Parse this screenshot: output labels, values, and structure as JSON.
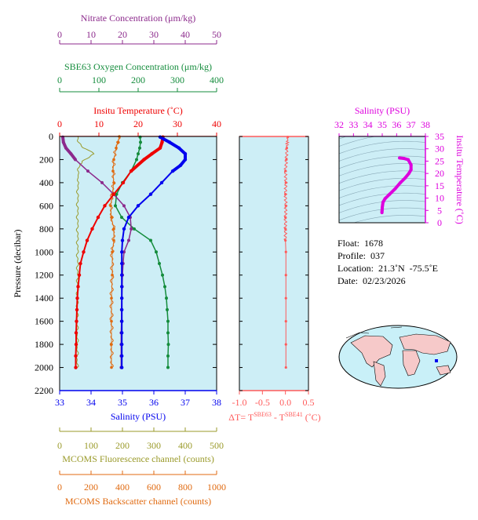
{
  "colors": {
    "nitrate": "#8c2a8c",
    "oxygen": "#148c3c",
    "temperature": "#ee0000",
    "salinity": "#0000ee",
    "fluorescence": "#9a9a2a",
    "backscatter": "#e06a10",
    "delta": "#ff5a5a",
    "ts": "#dd00dd",
    "plot_bg": "#cdeef6"
  },
  "axes_text": {
    "nitrate_title": "Nitrate Concentration (μm/kg)",
    "oxygen_title": "SBE63 Oxygen Concentration (μm/kg)",
    "temperature_title": "Insitu Temperature (˚C)",
    "salinity_title": "Salinity (PSU)",
    "pressure_title": "Pressure (decibar)",
    "fluorescence_title": "MCOMS Fluorescence channel (counts)",
    "backscatter_title": "MCOMS Backscatter channel (counts)",
    "delta_title": "ΔT= T",
    "delta_sup1": "SBE63",
    "delta_mid": " - T",
    "delta_sup2": "SBE41",
    "delta_end": " (˚C)",
    "ts_top_title": "Salinity (PSU)",
    "ts_side_title": "Insitu Temperature (˚C)"
  },
  "info": {
    "float": "Float:  1678",
    "profile": "Profile:  037",
    "location": "Location:  21.3˚N  -75.5˚E",
    "date": "Date:  02/23/2026"
  },
  "chart_data": [
    {
      "type": "line",
      "name": "profile_panel",
      "y_axis": {
        "label": "Pressure (decibar)",
        "range": [
          0,
          2200
        ],
        "ticks": [
          0,
          200,
          400,
          600,
          800,
          1000,
          1200,
          1400,
          1600,
          1800,
          2000,
          2200
        ],
        "inverted": true
      },
      "x_axes": [
        {
          "key": "nitrate",
          "label": "Nitrate Concentration (μm/kg)",
          "range": [
            0,
            50
          ],
          "ticks": [
            0,
            10,
            20,
            30,
            40,
            50
          ]
        },
        {
          "key": "oxygen",
          "label": "SBE63 Oxygen Concentration (μm/kg)",
          "range": [
            0,
            400
          ],
          "ticks": [
            0,
            100,
            200,
            300,
            400
          ]
        },
        {
          "key": "temperature",
          "label": "Insitu Temperature (˚C)",
          "range": [
            0,
            40
          ],
          "ticks": [
            0,
            10,
            20,
            30,
            40
          ]
        },
        {
          "key": "salinity",
          "label": "Salinity (PSU)",
          "range": [
            33,
            38
          ],
          "ticks": [
            33,
            34,
            35,
            36,
            37,
            38
          ]
        },
        {
          "key": "fluorescence",
          "label": "MCOMS Fluorescence channel (counts)",
          "range": [
            0,
            500
          ],
          "ticks": [
            0,
            100,
            200,
            300,
            400,
            500
          ]
        },
        {
          "key": "backscatter",
          "label": "MCOMS Backscatter channel (counts)",
          "range": [
            0,
            1000
          ],
          "ticks": [
            0,
            200,
            400,
            600,
            800,
            1000
          ]
        }
      ],
      "series": [
        {
          "key": "temperature",
          "pressure": [
            5,
            50,
            100,
            150,
            200,
            300,
            400,
            500,
            600,
            700,
            800,
            900,
            1000,
            1100,
            1200,
            1300,
            1400,
            1500,
            1600,
            1700,
            1800,
            1900,
            2000
          ],
          "values": [
            26.3,
            26.1,
            25.6,
            23.5,
            21.5,
            18.2,
            16.2,
            13.8,
            11.5,
            9.8,
            8.3,
            7.0,
            6.1,
            5.3,
            5.0,
            4.7,
            4.5,
            4.4,
            4.3,
            4.2,
            4.2,
            4.1,
            4.1
          ]
        },
        {
          "key": "salinity",
          "pressure": [
            5,
            50,
            100,
            150,
            200,
            250,
            300,
            400,
            500,
            600,
            700,
            800,
            900,
            1000,
            1100,
            1200,
            1300,
            1400,
            1500,
            1600,
            1700,
            1800,
            1900,
            2000
          ],
          "values": [
            36.2,
            36.5,
            36.8,
            37.0,
            37.0,
            36.85,
            36.6,
            36.25,
            35.9,
            35.5,
            35.2,
            35.05,
            35.0,
            34.98,
            34.98,
            34.98,
            34.98,
            34.98,
            34.98,
            34.98,
            34.98,
            34.98,
            34.98,
            34.98
          ]
        },
        {
          "key": "oxygen",
          "pressure": [
            5,
            50,
            100,
            150,
            200,
            300,
            400,
            500,
            600,
            700,
            800,
            900,
            1000,
            1100,
            1200,
            1300,
            1400,
            1500,
            1600,
            1700,
            1800,
            1900,
            2000
          ],
          "values": [
            205,
            206,
            204,
            200,
            196,
            182,
            160,
            145,
            142,
            158,
            190,
            232,
            246,
            254,
            262,
            268,
            272,
            274,
            276,
            276,
            277,
            276,
            276
          ]
        },
        {
          "key": "nitrate",
          "pressure": [
            5,
            50,
            100,
            150,
            200,
            300,
            400,
            500,
            600,
            700,
            800,
            900,
            1000,
            1100,
            1200,
            1300,
            1400,
            1500,
            1600,
            1700,
            1800,
            1900,
            2000
          ],
          "values": [
            1.0,
            1.2,
            2.0,
            3.6,
            5.0,
            9.0,
            13.5,
            17.2,
            20.5,
            22.5,
            22.8,
            22.0,
            20.5,
            20.2,
            20.0,
            19.9,
            19.8,
            19.7,
            19.7,
            19.6,
            19.6,
            19.6,
            19.6
          ]
        },
        {
          "key": "fluorescence",
          "pressure": [
            0,
            40,
            80,
            110,
            150,
            200,
            260,
            400,
            600,
            800,
            1000,
            1200,
            1400,
            1600,
            1800,
            2000
          ],
          "values": [
            58,
            60,
            66,
            85,
            110,
            80,
            60,
            58,
            57,
            57,
            57,
            57,
            56,
            56,
            56,
            56
          ]
        },
        {
          "key": "backscatter",
          "pressure": [
            0,
            50,
            100,
            200,
            300,
            400,
            500,
            600,
            700,
            800,
            900,
            1000,
            1200,
            1400,
            1600,
            1800,
            2000
          ],
          "values": [
            380,
            370,
            360,
            345,
            340,
            345,
            335,
            325,
            330,
            345,
            345,
            335,
            335,
            330,
            330,
            330,
            330
          ]
        }
      ]
    },
    {
      "type": "line",
      "name": "delta_panel",
      "x_axis": {
        "label": "ΔT= T SBE63 - T SBE41 (˚C)",
        "range": [
          -1.0,
          0.5
        ],
        "ticks": [
          -1.0,
          -0.5,
          0.0,
          0.5
        ]
      },
      "y_axis": {
        "range": [
          0,
          2200
        ],
        "inverted": true
      },
      "series": [
        {
          "key": "delta",
          "pressure": [
            5,
            100,
            200,
            300,
            400,
            500,
            600,
            700,
            800,
            900,
            1000,
            1200,
            1400,
            1600,
            1800,
            2000
          ],
          "values": [
            0.05,
            0.03,
            0.02,
            0.0,
            0.01,
            0.0,
            0.01,
            0.0,
            0.0,
            0.0,
            0.01,
            0.01,
            0.01,
            0.01,
            0.01,
            0.01
          ]
        }
      ]
    },
    {
      "type": "scatter",
      "name": "ts_diagram",
      "x_axis": {
        "label": "Salinity (PSU)",
        "range": [
          32,
          38
        ],
        "ticks": [
          32,
          33,
          34,
          35,
          36,
          37,
          38
        ]
      },
      "y_axis": {
        "label": "Insitu Temperature (˚C)",
        "range": [
          0,
          35
        ],
        "ticks": [
          0,
          5,
          10,
          15,
          20,
          25,
          30,
          35
        ]
      },
      "series": [
        {
          "key": "ts",
          "salinity": [
            34.98,
            34.98,
            34.99,
            35.0,
            35.05,
            35.2,
            35.5,
            35.9,
            36.25,
            36.6,
            36.85,
            37.0,
            37.0,
            36.8,
            36.5,
            36.2
          ],
          "temperature": [
            4.1,
            4.3,
            5.0,
            6.1,
            8.3,
            9.8,
            11.5,
            13.8,
            16.2,
            18.2,
            20.0,
            21.5,
            23.5,
            25.6,
            26.1,
            26.3
          ]
        }
      ]
    }
  ]
}
